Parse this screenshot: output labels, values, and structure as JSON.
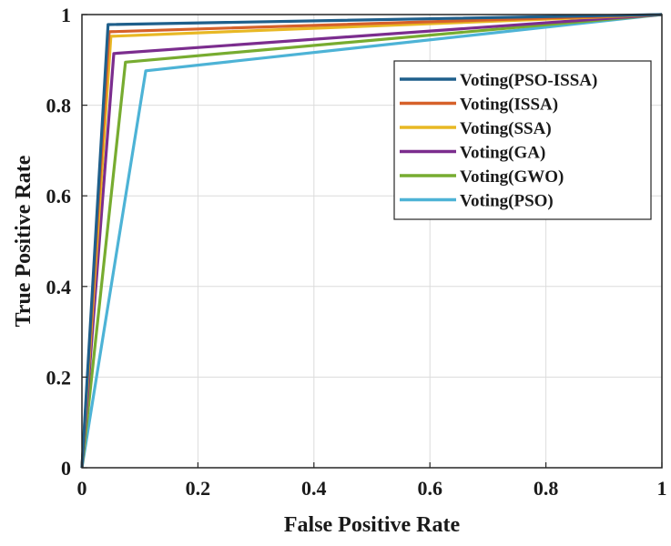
{
  "chart_data": {
    "type": "line",
    "title": "",
    "xlabel": "False Positive Rate",
    "ylabel": "True Positive Rate",
    "xlim": [
      0,
      1
    ],
    "ylim": [
      0,
      1
    ],
    "xticks": [
      "0",
      "0.2",
      "0.4",
      "0.6",
      "0.8",
      "1"
    ],
    "yticks": [
      "0",
      "0.2",
      "0.4",
      "0.6",
      "0.8",
      "1"
    ],
    "grid": true,
    "legend_position": "top-right",
    "series": [
      {
        "name": "Voting(PSO-ISSA)",
        "color": "#1f5f8b",
        "x": [
          0,
          0.045,
          1
        ],
        "y": [
          0,
          0.978,
          1
        ]
      },
      {
        "name": "Voting(ISSA)",
        "color": "#d6612a",
        "x": [
          0,
          0.047,
          1
        ],
        "y": [
          0,
          0.962,
          1
        ]
      },
      {
        "name": "Voting(SSA)",
        "color": "#e8b824",
        "x": [
          0,
          0.05,
          1
        ],
        "y": [
          0,
          0.952,
          1
        ]
      },
      {
        "name": "Voting(GA)",
        "color": "#7b2d8e",
        "x": [
          0,
          0.055,
          1
        ],
        "y": [
          0,
          0.914,
          1
        ]
      },
      {
        "name": "Voting(GWO)",
        "color": "#77ac30",
        "x": [
          0,
          0.075,
          1
        ],
        "y": [
          0,
          0.895,
          1
        ]
      },
      {
        "name": "Voting(PSO)",
        "color": "#4db3d6",
        "x": [
          0,
          0.11,
          1
        ],
        "y": [
          0,
          0.876,
          1
        ]
      }
    ]
  }
}
